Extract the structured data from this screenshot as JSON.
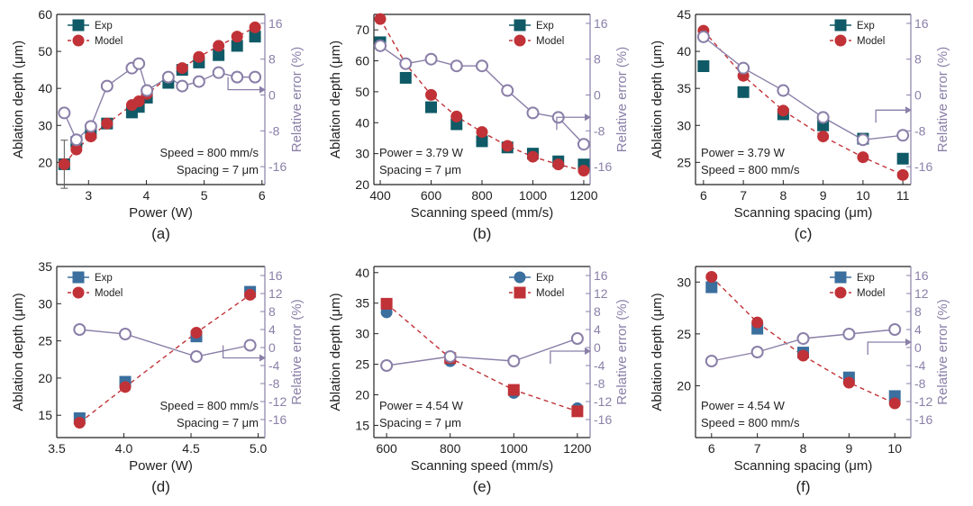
{
  "colors": {
    "exp_dark": "#0f5a66",
    "exp_blue": "#3a6f9e",
    "model_red": "#c03237",
    "error_purple": "#8a7fa8",
    "axis_black": "#222222"
  },
  "chart_data": [
    {
      "type": "scatter",
      "panel_label": "(a)",
      "xlabel": "Power (W)",
      "ylabel": "Ablation depth (μm)",
      "y2label": "Relative error (%)",
      "xlim": [
        2.45,
        6.05
      ],
      "ylim": [
        14,
        60
      ],
      "y2lim": [
        -20,
        18
      ],
      "xticks": [
        3,
        4,
        5,
        6
      ],
      "yticks": [
        20,
        30,
        40,
        50,
        60
      ],
      "y2ticks": [
        -16,
        -8,
        0,
        8,
        16
      ],
      "legend": [
        {
          "name": "Exp",
          "marker": "square"
        },
        {
          "name": "Model",
          "marker": "circle"
        }
      ],
      "legend_position": "top-left",
      "exp_marker": "square",
      "model_marker": "circle",
      "exp_color_key": "exp_dark",
      "annotations": [
        "Speed = 800 mm/s",
        "Spacing = 7 μm"
      ],
      "arrow_direction": "right",
      "series": [
        {
          "name": "Exp",
          "x": [
            2.58,
            2.79,
            3.04,
            3.32,
            3.75,
            3.87,
            4.01,
            4.38,
            4.62,
            4.91,
            5.25,
            5.57,
            5.88
          ],
          "y": [
            19.5,
            25.5,
            28,
            30.5,
            33.5,
            35,
            37.5,
            41.5,
            45,
            47,
            49,
            51.5,
            54
          ],
          "yerr": [
            6.5,
            1,
            1,
            1,
            1,
            1,
            1,
            1,
            1,
            1,
            1,
            1,
            1
          ]
        },
        {
          "name": "Model",
          "x": [
            2.58,
            2.79,
            3.04,
            3.32,
            3.75,
            3.87,
            4.01,
            4.38,
            4.62,
            4.91,
            5.25,
            5.57,
            5.88
          ],
          "y": [
            19.5,
            23.5,
            27,
            30.5,
            35.5,
            36.5,
            38.5,
            43,
            45.5,
            48.5,
            51.5,
            54,
            56.5
          ]
        },
        {
          "name": "Relative error",
          "axis": "y2",
          "x": [
            2.58,
            2.79,
            3.04,
            3.32,
            3.75,
            3.87,
            4.01,
            4.38,
            4.62,
            4.91,
            5.25,
            5.57,
            5.88
          ],
          "y": [
            -4,
            -10,
            -7,
            2,
            6,
            7,
            1,
            4,
            2,
            3,
            5,
            4,
            4
          ]
        }
      ]
    },
    {
      "type": "scatter",
      "panel_label": "(b)",
      "xlabel": "Scanning speed (mm/s)",
      "ylabel": "Ablation depth (μm)",
      "y2label": "Relative error (%)",
      "xlim": [
        375,
        1225
      ],
      "ylim": [
        20,
        75
      ],
      "y2lim": [
        -20,
        18
      ],
      "xticks": [
        400,
        600,
        800,
        1000,
        1200
      ],
      "yticks": [
        20,
        30,
        40,
        50,
        60,
        70
      ],
      "y2ticks": [
        -16,
        -8,
        0,
        8,
        16
      ],
      "legend": [
        {
          "name": "Exp",
          "marker": "square"
        },
        {
          "name": "Model",
          "marker": "circle"
        }
      ],
      "legend_position": "top-right",
      "exp_marker": "square",
      "model_marker": "circle",
      "exp_color_key": "exp_dark",
      "annotations": [
        "Power = 3.79 W",
        "Spacing = 7 μm"
      ],
      "arrow_direction": "right",
      "series": [
        {
          "name": "Exp",
          "x": [
            400,
            500,
            600,
            700,
            800,
            900,
            1000,
            1100,
            1200
          ],
          "y": [
            66,
            54.5,
            45,
            39.5,
            34,
            32,
            30,
            27.5,
            26.5
          ]
        },
        {
          "name": "Model",
          "x": [
            400,
            500,
            600,
            700,
            800,
            900,
            1000,
            1100,
            1200
          ],
          "y": [
            73.5,
            59,
            49,
            42,
            37,
            32.5,
            29,
            26.5,
            24.5
          ]
        },
        {
          "name": "Relative error",
          "axis": "y2",
          "x": [
            400,
            500,
            600,
            700,
            800,
            900,
            1000,
            1100,
            1200
          ],
          "y": [
            11,
            7,
            8,
            6.5,
            6.5,
            1,
            -4,
            -5,
            -11
          ]
        }
      ]
    },
    {
      "type": "scatter",
      "panel_label": "(c)",
      "xlabel": "Scanning spacing (μm)",
      "ylabel": "Ablation depth (μm)",
      "y2label": "Relative error (%)",
      "xlim": [
        5.8,
        11.2
      ],
      "ylim": [
        22,
        45
      ],
      "y2lim": [
        -20,
        18
      ],
      "xticks": [
        6,
        7,
        8,
        9,
        10,
        11
      ],
      "yticks": [
        25,
        30,
        35,
        40,
        45
      ],
      "y2ticks": [
        -16,
        -8,
        0,
        8,
        16
      ],
      "legend": [
        {
          "name": "Exp",
          "marker": "square"
        },
        {
          "name": "Model",
          "marker": "circle"
        }
      ],
      "legend_position": "top-right",
      "exp_marker": "square",
      "model_marker": "circle",
      "exp_color_key": "exp_dark",
      "annotations": [
        "Power = 3.79 W",
        "Speed = 800 mm/s"
      ],
      "arrow_direction": "right",
      "series": [
        {
          "name": "Exp",
          "x": [
            6,
            7,
            8,
            9,
            10,
            11
          ],
          "y": [
            38,
            34.5,
            31.5,
            30,
            28.2,
            25.5
          ]
        },
        {
          "name": "Model",
          "x": [
            6,
            7,
            8,
            9,
            10,
            11
          ],
          "y": [
            42.8,
            36.7,
            32,
            28.5,
            25.7,
            23.3
          ]
        },
        {
          "name": "Relative error",
          "axis": "y2",
          "x": [
            6,
            7,
            8,
            9,
            10,
            11
          ],
          "y": [
            13,
            6,
            1,
            -5,
            -10,
            -9
          ]
        }
      ]
    },
    {
      "type": "scatter",
      "panel_label": "(d)",
      "xlabel": "Power (W)",
      "ylabel": "Ablation depth (μm)",
      "y2label": "Relative error (%)",
      "xlim": [
        3.5,
        5.05
      ],
      "ylim": [
        12,
        35
      ],
      "y2lim": [
        -20,
        18
      ],
      "xticks": [
        3.5,
        4.0,
        4.5,
        5.0
      ],
      "xtick_labels": [
        "3.5",
        "4.0",
        "4.5",
        "5.0"
      ],
      "yticks": [
        15,
        20,
        25,
        30,
        35
      ],
      "y2ticks": [
        -16,
        -12,
        -8,
        -4,
        0,
        4,
        8,
        12,
        16
      ],
      "legend": [
        {
          "name": "Exp",
          "marker": "square"
        },
        {
          "name": "Model",
          "marker": "circle"
        }
      ],
      "legend_position": "top-left",
      "exp_marker": "square",
      "model_marker": "circle",
      "exp_color_key": "exp_blue",
      "annotations": [
        "Speed = 800 mm/s",
        "Spacing = 7 μm"
      ],
      "arrow_direction": "right",
      "series": [
        {
          "name": "Exp",
          "x": [
            3.67,
            4.01,
            4.54,
            4.94
          ],
          "y": [
            14.6,
            19.5,
            25.6,
            31.6
          ]
        },
        {
          "name": "Model",
          "x": [
            3.67,
            4.01,
            4.54,
            4.94
          ],
          "y": [
            14,
            18.8,
            26.1,
            31.2
          ]
        },
        {
          "name": "Relative error",
          "axis": "y2",
          "x": [
            3.67,
            4.01,
            4.54,
            4.94
          ],
          "y": [
            4,
            3,
            -2,
            0.5
          ]
        }
      ]
    },
    {
      "type": "scatter",
      "panel_label": "(e)",
      "xlabel": "Scanning speed (mm/s)",
      "ylabel": "Ablation depth (μm)",
      "y2label": "Relative error (%)",
      "xlim": [
        560,
        1240
      ],
      "ylim": [
        13,
        41
      ],
      "y2lim": [
        -20,
        18
      ],
      "xticks": [
        600,
        800,
        1000,
        1200
      ],
      "yticks": [
        15,
        20,
        25,
        30,
        35,
        40
      ],
      "y2ticks": [
        -16,
        -12,
        -8,
        -4,
        0,
        4,
        8,
        12,
        16
      ],
      "legend": [
        {
          "name": "Exp",
          "marker": "circle"
        },
        {
          "name": "Model",
          "marker": "square"
        }
      ],
      "legend_position": "top-right",
      "exp_marker": "circle",
      "model_marker": "square",
      "exp_color_key": "exp_blue",
      "annotations": [
        "Power = 4.54 W",
        "Spacing = 7 μm"
      ],
      "arrow_direction": "right",
      "series": [
        {
          "name": "Exp",
          "x": [
            600,
            800,
            1000,
            1200
          ],
          "y": [
            33.5,
            25.5,
            20.3,
            17.8
          ]
        },
        {
          "name": "Model",
          "x": [
            600,
            800,
            1000,
            1200
          ],
          "y": [
            34.9,
            26,
            20.8,
            17.3
          ]
        },
        {
          "name": "Relative error",
          "axis": "y2",
          "x": [
            600,
            800,
            1000,
            1200
          ],
          "y": [
            -4,
            -2,
            -3,
            2
          ]
        }
      ]
    },
    {
      "type": "scatter",
      "panel_label": "(f)",
      "xlabel": "Scanning spacing (μm)",
      "ylabel": "Ablation depth (μm)",
      "y2label": "Relative error (%)",
      "xlim": [
        5.65,
        10.35
      ],
      "ylim": [
        15,
        31.5
      ],
      "y2lim": [
        -20,
        18
      ],
      "xticks": [
        6,
        7,
        8,
        9,
        10
      ],
      "yticks": [
        20,
        25,
        30
      ],
      "y2ticks": [
        -16,
        -12,
        -8,
        -4,
        0,
        4,
        8,
        12,
        16
      ],
      "legend": [
        {
          "name": "Exp",
          "marker": "square"
        },
        {
          "name": "Model",
          "marker": "circle"
        }
      ],
      "legend_position": "top-right",
      "exp_marker": "square",
      "model_marker": "circle",
      "exp_color_key": "exp_blue",
      "annotations": [
        "Power = 4.54 W",
        "Speed = 800 mm/s"
      ],
      "arrow_direction": "right",
      "series": [
        {
          "name": "Exp",
          "x": [
            6,
            7,
            8,
            9,
            10
          ],
          "y": [
            29.5,
            25.5,
            23.2,
            20.8,
            19
          ]
        },
        {
          "name": "Model",
          "x": [
            6,
            7,
            8,
            9,
            10
          ],
          "y": [
            30.5,
            26.1,
            22.9,
            20.3,
            18.3
          ]
        },
        {
          "name": "Relative error",
          "axis": "y2",
          "x": [
            6,
            7,
            8,
            9,
            10
          ],
          "y": [
            -3,
            -1,
            2,
            3,
            4
          ]
        }
      ]
    }
  ]
}
